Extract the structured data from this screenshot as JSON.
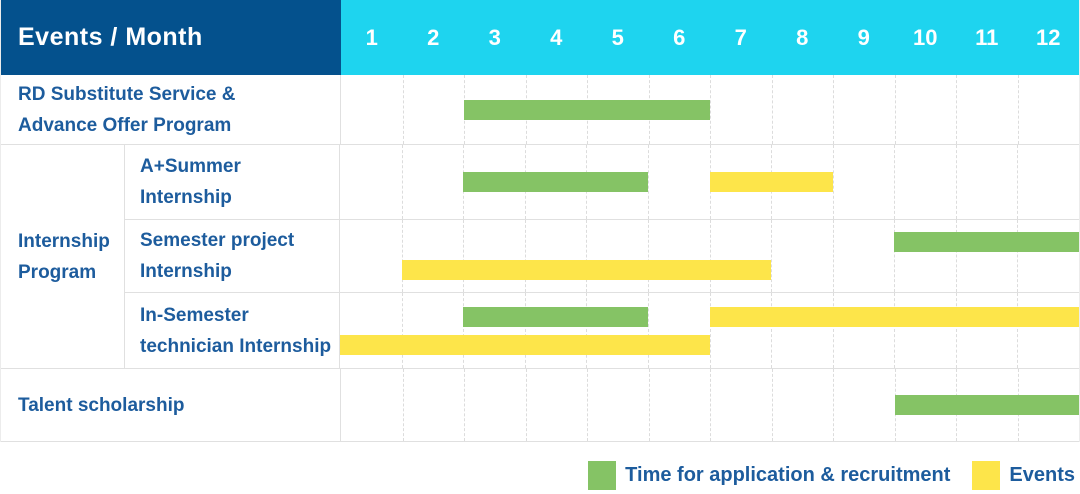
{
  "header": {
    "label_column": "Events / Month",
    "months": [
      "1",
      "2",
      "3",
      "4",
      "5",
      "6",
      "7",
      "8",
      "9",
      "10",
      "11",
      "12"
    ]
  },
  "colors": {
    "header_bg": "#04518d",
    "months_bg": "#1ed4ef",
    "green": "#85c365",
    "yellow": "#fde54a",
    "label_text": "#1d5c9d",
    "grid": "#e0e0e0"
  },
  "legend": {
    "items": [
      {
        "label": "Time for application & recruitment",
        "color": "green"
      },
      {
        "label": "Events",
        "color": "yellow"
      }
    ]
  },
  "chart_data": {
    "type": "gantt",
    "title": "Events / Month",
    "x_categories": [
      1,
      2,
      3,
      4,
      5,
      6,
      7,
      8,
      9,
      10,
      11,
      12
    ],
    "x_range": [
      1,
      12
    ],
    "grid": "vertical-dashed",
    "legend_position": "bottom-right",
    "bar_meaning": {
      "green": "Time for application & recruitment",
      "yellow": "Events"
    },
    "rows": [
      {
        "group": null,
        "label": "RD Substitute Service &\nAdvance Offer Program",
        "tracks": [
          [
            {
              "color": "green",
              "start_month": 3,
              "end_month": 6
            }
          ]
        ]
      },
      {
        "group": "Internship\nProgram",
        "label": "A+Summer\nInternship",
        "tracks": [
          [
            {
              "color": "green",
              "start_month": 3,
              "end_month": 5
            },
            {
              "color": "yellow",
              "start_month": 7,
              "end_month": 8
            }
          ]
        ]
      },
      {
        "group": "Internship\nProgram",
        "label": "Semester project\nInternship",
        "tracks": [
          [
            {
              "color": "green",
              "start_month": 10,
              "end_month": 12
            }
          ],
          [
            {
              "color": "yellow",
              "start_month": 2,
              "end_month": 7
            }
          ]
        ]
      },
      {
        "group": "Internship\nProgram",
        "label": "In-Semester\ntechnician Internship",
        "tracks": [
          [
            {
              "color": "green",
              "start_month": 3,
              "end_month": 5
            },
            {
              "color": "yellow",
              "start_month": 7,
              "end_month": 12
            }
          ],
          [
            {
              "color": "yellow",
              "start_month": 1,
              "end_month": 6
            }
          ]
        ]
      },
      {
        "group": null,
        "label": "Talent scholarship",
        "tracks": [
          [
            {
              "color": "green",
              "start_month": 10,
              "end_month": 12
            }
          ]
        ]
      }
    ]
  }
}
